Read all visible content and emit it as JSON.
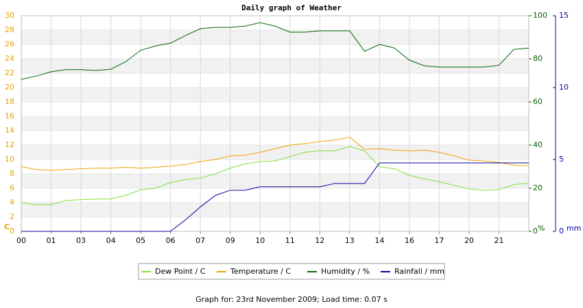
{
  "chart_data": {
    "type": "line",
    "title": "Daily graph of Weather",
    "footer": "Graph for: 23rd November 2009; Load time: 0.07 s",
    "y_label": "C",
    "y2_label": "%",
    "y3_label": "mm",
    "x": [
      0,
      0.5,
      1,
      1.5,
      2,
      2.5,
      3,
      3.5,
      4,
      4.5,
      5,
      5.5,
      6,
      6.5,
      7,
      7.5,
      8,
      8.5,
      9,
      9.5,
      10,
      10.5,
      11,
      11.5,
      12,
      12.5,
      13,
      13.5,
      14,
      14.5,
      15,
      15.5,
      16,
      16.5,
      17
    ],
    "xlim": [
      0,
      17
    ],
    "xticks": [
      {
        "value": 0,
        "label": "00"
      },
      {
        "value": 1,
        "label": "01"
      },
      {
        "value": 2,
        "label": "03"
      },
      {
        "value": 3,
        "label": "04"
      },
      {
        "value": 4,
        "label": "05"
      },
      {
        "value": 5,
        "label": "06"
      },
      {
        "value": 6,
        "label": "07"
      },
      {
        "value": 7,
        "label": "09"
      },
      {
        "value": 8,
        "label": "10"
      },
      {
        "value": 9,
        "label": "11"
      },
      {
        "value": 10,
        "label": "12"
      },
      {
        "value": 11,
        "label": "13"
      },
      {
        "value": 12,
        "label": "14"
      },
      {
        "value": 13,
        "label": "16"
      },
      {
        "value": 14,
        "label": "17"
      },
      {
        "value": 15,
        "label": "20"
      },
      {
        "value": 16,
        "label": "21"
      }
    ],
    "ylim": [
      0,
      30
    ],
    "yticks": [
      0,
      2,
      4,
      6,
      8,
      10,
      12,
      14,
      16,
      18,
      20,
      22,
      24,
      26,
      28,
      30
    ],
    "y2lim": [
      0,
      100
    ],
    "y2ticks": [
      0,
      20,
      40,
      60,
      80,
      100
    ],
    "y3lim": [
      0,
      15
    ],
    "y3ticks": [
      0,
      5,
      10,
      15
    ],
    "grid": true,
    "axis_colors": {
      "y": "#e8a000",
      "y2": "#006400",
      "y3": "#0000a0"
    },
    "series": [
      {
        "name": "Dew Point / C",
        "color": "#80e030",
        "values": [
          4.0,
          3.7,
          3.7,
          4.3,
          4.4,
          4.5,
          4.5,
          5.0,
          5.8,
          6.0,
          6.8,
          7.2,
          7.4,
          8.0,
          8.8,
          9.4,
          9.7,
          9.8,
          10.4,
          11.0,
          11.2,
          11.2,
          11.8,
          11.2,
          9.0,
          8.7,
          7.8,
          7.3,
          6.9,
          6.4,
          5.9,
          5.7,
          5.8,
          6.5,
          6.7
        ]
      },
      {
        "name": "Temperature / C",
        "color": "#f0a000",
        "values": [
          9.0,
          8.6,
          8.5,
          8.6,
          8.7,
          8.8,
          8.8,
          8.9,
          8.8,
          8.9,
          9.1,
          9.3,
          9.7,
          10.0,
          10.5,
          10.6,
          11.0,
          11.5,
          12.0,
          12.2,
          12.5,
          12.7,
          13.1,
          11.4,
          11.5,
          11.3,
          11.2,
          11.3,
          11.0,
          10.5,
          9.9,
          9.8,
          9.6,
          9.2,
          9.1
        ]
      },
      {
        "name": "Humidity / %",
        "color": "#006400",
        "axis": "y2",
        "values": [
          70.5,
          72,
          74,
          75,
          75,
          74.6,
          75.2,
          78.7,
          84,
          86,
          87.3,
          90.8,
          94,
          94.6,
          94.6,
          95.2,
          96.8,
          95.2,
          92.4,
          92.4,
          93,
          93,
          93,
          83.5,
          86.7,
          85,
          79.4,
          76.8,
          76.2,
          76.2,
          76.2,
          76.2,
          77,
          84.4,
          85
        ]
      },
      {
        "name": "Rainfall / mm",
        "color": "#0000a0",
        "axis": "y3",
        "values": [
          0,
          0,
          0,
          0,
          0,
          0,
          0,
          0,
          0,
          0,
          0,
          0.8,
          1.7,
          2.5,
          2.86,
          2.86,
          3.1,
          3.1,
          3.1,
          3.1,
          3.1,
          3.33,
          3.33,
          3.33,
          4.76,
          4.76,
          4.76,
          4.76,
          4.76,
          4.76,
          4.76,
          4.76,
          4.76,
          4.76,
          4.76
        ]
      }
    ]
  }
}
